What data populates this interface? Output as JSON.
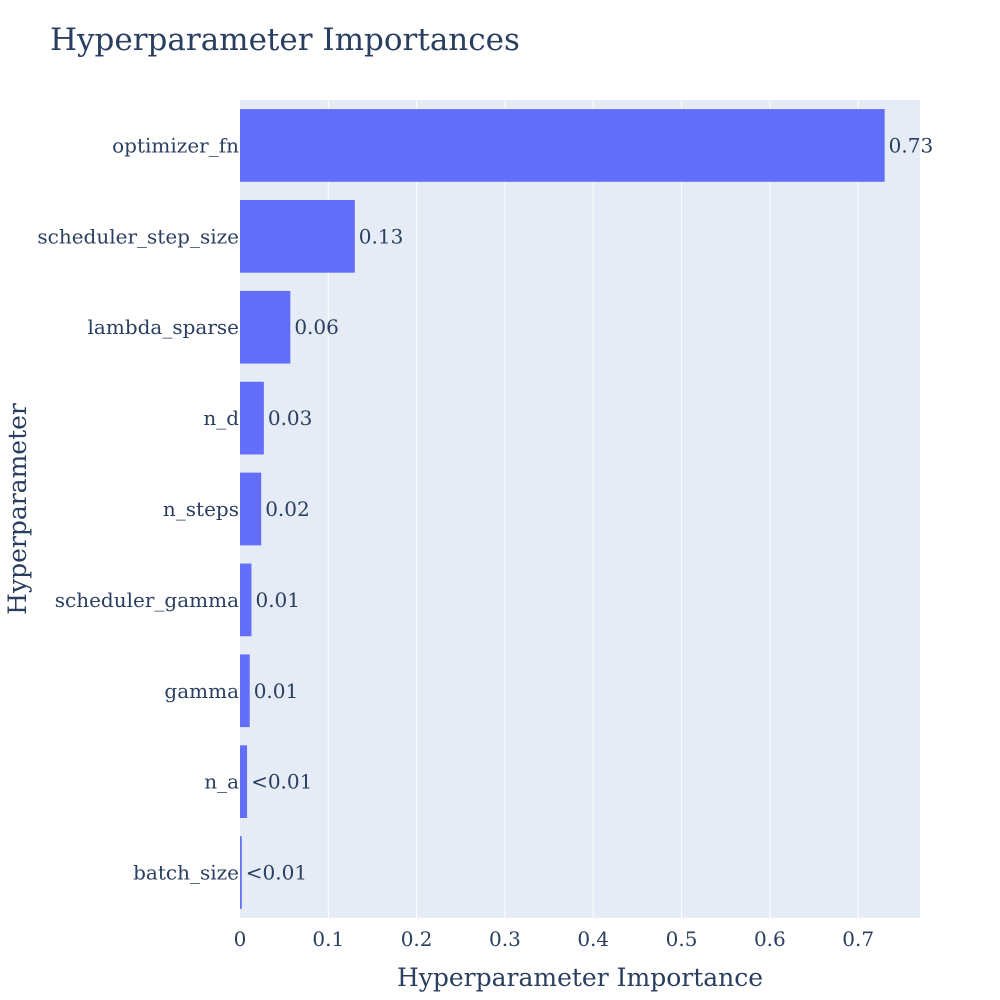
{
  "chart_data": {
    "type": "bar",
    "orientation": "horizontal",
    "title": "Hyperparameter Importances",
    "xlabel": "Hyperparameter Importance",
    "ylabel": "Hyperparameter",
    "xlim": [
      0,
      0.77
    ],
    "xticks": [
      0,
      0.1,
      0.2,
      0.3,
      0.4,
      0.5,
      0.6,
      0.7
    ],
    "xtick_labels": [
      "0",
      "0.1",
      "0.2",
      "0.3",
      "0.4",
      "0.5",
      "0.6",
      "0.7"
    ],
    "grid": true,
    "colors": {
      "bar": "#636efa",
      "plot_bg": "#e5ecf6",
      "grid": "#ffffff",
      "text": "#2a3f5f"
    },
    "categories": [
      "optimizer_fn",
      "scheduler_step_size",
      "lambda_sparse",
      "n_d",
      "n_steps",
      "scheduler_gamma",
      "gamma",
      "n_a",
      "batch_size"
    ],
    "values": [
      0.73,
      0.13,
      0.057,
      0.027,
      0.024,
      0.013,
      0.011,
      0.008,
      0.002
    ],
    "data_labels": [
      "0.73",
      "0.13",
      "0.06",
      "0.03",
      "0.02",
      "0.01",
      "0.01",
      "<0.01",
      "<0.01"
    ]
  }
}
